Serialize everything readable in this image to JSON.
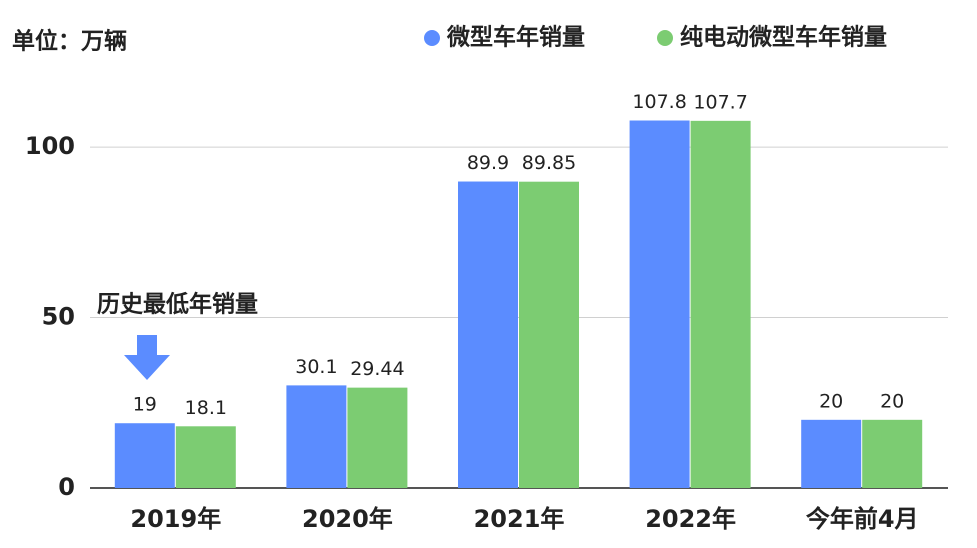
{
  "chart_data": {
    "type": "bar",
    "y_label": "单位：万辆",
    "annotation": "历史最低年销量",
    "categories": [
      "2019年",
      "2020年",
      "2021年",
      "2022年",
      "今年前4月"
    ],
    "series": [
      {
        "name": "微型车年销量",
        "color": "#5b8cff",
        "values": [
          19,
          30.1,
          89.9,
          107.8,
          20
        ]
      },
      {
        "name": "纯电动微型车年销量",
        "color": "#7ccc72",
        "values": [
          18.1,
          29.44,
          89.85,
          107.7,
          20
        ]
      }
    ],
    "ylim": [
      0,
      110
    ],
    "yticks": [
      0,
      50,
      100
    ],
    "grid": true,
    "legend": "top-right"
  }
}
